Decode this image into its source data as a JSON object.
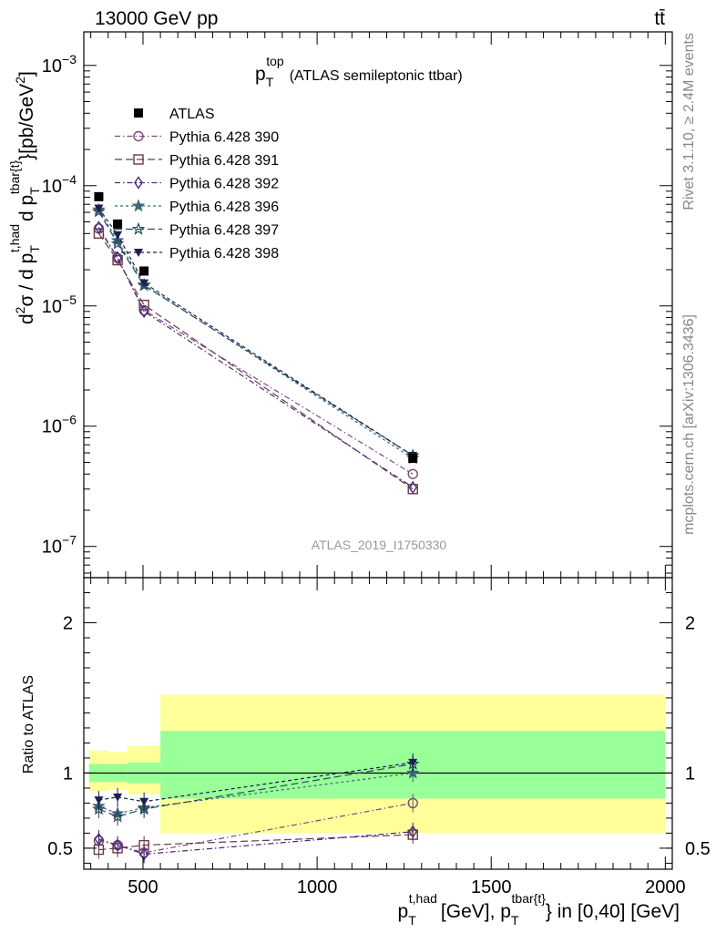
{
  "header": {
    "left": "13000 GeV pp",
    "right": "tt̄"
  },
  "side_labels": {
    "rivet": "Rivet 3.1.10, ≥ 2.4M events",
    "mcplots": "mcplots.cern.ch [arXiv:1306.3436]"
  },
  "colors": {
    "data": "#000000",
    "band_inner": "#99ff99",
    "band_outer": "#ffff99",
    "axis": "#000000",
    "watermark": "#999999"
  },
  "chart_data": [
    {
      "type": "scatter",
      "panel": "main",
      "title_main": "p",
      "title_sub": "T",
      "title_sup": "top",
      "title_rest": "(ATLAS semileptonic ttbar)",
      "ylabel_parts": {
        "d": "d",
        "two": "2",
        "sigma": "σ",
        "slash": "/  d p",
        "sub1": "T",
        "sup1": "t,had",
        "dp": "d p",
        "sub2": "T",
        "sup2": "tbar{t}",
        "unit_open": "}[pb/GeV",
        "unit_sup": "2",
        "unit_close": "]"
      },
      "yscale": "log",
      "ylim": [
        5.5e-08,
        0.0019
      ],
      "xlim": [
        330,
        2020
      ],
      "yticks": [
        {
          "value": 1e-07,
          "base": "10",
          "exp": "−7"
        },
        {
          "value": 1e-06,
          "base": "10",
          "exp": "−6"
        },
        {
          "value": 1e-05,
          "base": "10",
          "exp": "−5"
        },
        {
          "value": 0.0001,
          "base": "10",
          "exp": "−4"
        },
        {
          "value": 0.001,
          "base": "10",
          "exp": "−3"
        }
      ],
      "watermark": "ATLAS_2019_I1750330",
      "x": [
        373,
        427,
        503,
        1275
      ],
      "data": {
        "name": "ATLAS",
        "y": [
          8.1e-05,
          4.8e-05,
          1.95e-05,
          5.4e-07
        ]
      },
      "series": [
        {
          "name": "Pythia 6.428 390",
          "color": "#7a4a7a",
          "dash": "6,3,1.5,3",
          "marker": "circle",
          "y": [
            4.4e-05,
            2.5e-05,
            9.2e-06,
            4e-07
          ]
        },
        {
          "name": "Pythia 6.428 391",
          "color": "#6a3a4a",
          "dash": "8,4",
          "marker": "square",
          "y": [
            4e-05,
            2.4e-05,
            1.02e-05,
            3e-07
          ]
        },
        {
          "name": "Pythia 6.428 392",
          "color": "#4a2a7a",
          "dash": "6,3,1.5,3",
          "marker": "diamond",
          "y": [
            4.5e-05,
            2.5e-05,
            9e-06,
            3.1e-07
          ]
        },
        {
          "name": "Pythia 6.428 396",
          "color": "#3a6a7a",
          "dash": "3,3",
          "marker": "star",
          "y": [
            6.3e-05,
            3.5e-05,
            1.5e-05,
            5.4e-07
          ]
        },
        {
          "name": "Pythia 6.428 397",
          "color": "#2a4a5a",
          "dash": "8,4",
          "marker": "star-open",
          "y": [
            6.1e-05,
            3.3e-05,
            1.48e-05,
            5.7e-07
          ]
        },
        {
          "name": "Pythia 6.428 398",
          "color": "#1a2050",
          "dash": "4,3",
          "marker": "triangle-down",
          "y": [
            6.5e-05,
            3.9e-05,
            1.55e-05,
            5.7e-07
          ]
        }
      ]
    },
    {
      "type": "scatter",
      "panel": "ratio",
      "ylabel": "Ratio to ATLAS",
      "xlabel_parts": {
        "p1": "p",
        "sub1": "T",
        "sup1": "t,had",
        "mid": "[GeV], p",
        "sub2": "T",
        "sup2": "tbar{t}",
        "rest": "} in [0,40] [GeV]"
      },
      "ylim": [
        0.36,
        2.3
      ],
      "xlim": [
        330,
        2020
      ],
      "yticks": [
        {
          "value": 0.5,
          "label": "0.5"
        },
        {
          "value": 1,
          "label": "1"
        },
        {
          "value": 2,
          "label": "2"
        }
      ],
      "xticks": [
        {
          "value": 500,
          "label": "500"
        },
        {
          "value": 1000,
          "label": "1000"
        },
        {
          "value": 1500,
          "label": "1500"
        },
        {
          "value": 2000,
          "label": "2000"
        }
      ],
      "bands": [
        {
          "x0": 345,
          "x1": 400,
          "inner": [
            0.94,
            1.06
          ],
          "outer": [
            0.88,
            1.15
          ]
        },
        {
          "x0": 400,
          "x1": 455,
          "inner": [
            0.94,
            1.06
          ],
          "outer": [
            0.89,
            1.14
          ]
        },
        {
          "x0": 455,
          "x1": 550,
          "inner": [
            0.93,
            1.07
          ],
          "outer": [
            0.86,
            1.18
          ]
        },
        {
          "x0": 550,
          "x1": 2000,
          "inner": [
            0.83,
            1.28
          ],
          "outer": [
            0.6,
            1.52
          ]
        }
      ],
      "x": [
        373,
        427,
        503,
        1275
      ],
      "series": [
        {
          "name": "Pythia 6.428 390",
          "y": [
            0.55,
            0.52,
            0.47,
            0.8
          ]
        },
        {
          "name": "Pythia 6.428 391",
          "y": [
            0.49,
            0.5,
            0.52,
            0.59
          ]
        },
        {
          "name": "Pythia 6.428 392",
          "y": [
            0.56,
            0.52,
            0.46,
            0.61
          ]
        },
        {
          "name": "Pythia 6.428 396",
          "y": [
            0.78,
            0.73,
            0.77,
            1.0
          ]
        },
        {
          "name": "Pythia 6.428 397",
          "y": [
            0.76,
            0.71,
            0.76,
            1.06
          ]
        },
        {
          "name": "Pythia 6.428 398",
          "y": [
            0.82,
            0.84,
            0.81,
            1.07
          ]
        }
      ]
    }
  ]
}
